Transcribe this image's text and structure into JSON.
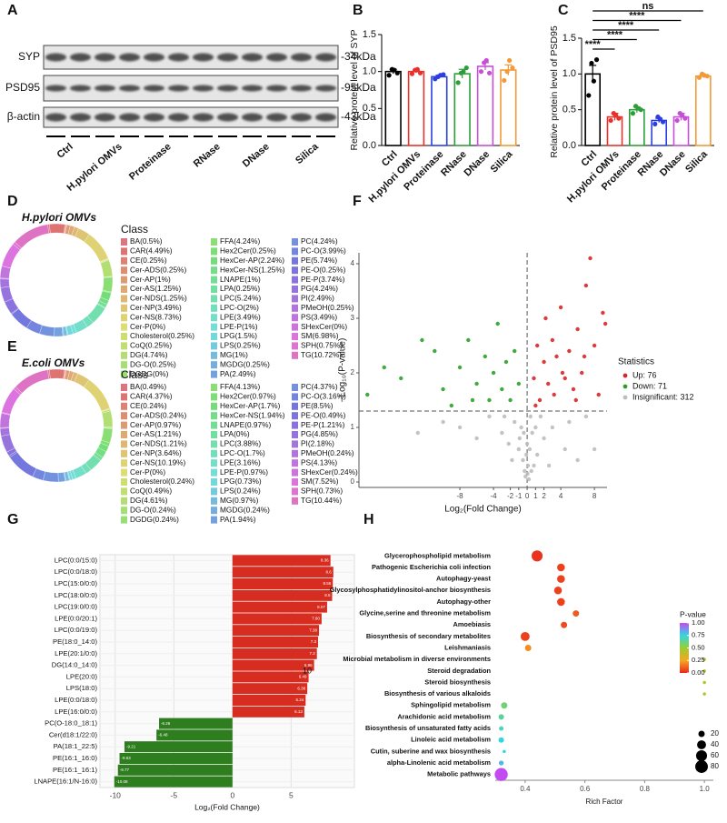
{
  "panels": [
    "A",
    "B",
    "C",
    "D",
    "E",
    "F",
    "G",
    "H"
  ],
  "blot": {
    "rows": [
      "SYP",
      "PSD95",
      "β-actin"
    ],
    "sizes": [
      "-34kDa",
      "-95kDa",
      "-43kDa"
    ],
    "lanes": [
      "Ctrl",
      "H.pylori OMVs",
      "Proteinase",
      "RNase",
      "DNase",
      "Silica"
    ]
  },
  "chart_data": [
    {
      "type": "bar",
      "ylabel": "Relative protein level of SYP",
      "categories": [
        "Ctrl",
        "H.pylori OMVs",
        "Proteinase",
        "RNase",
        "DNase",
        "Silica"
      ],
      "values": [
        1.0,
        1.0,
        0.93,
        0.97,
        1.07,
        1.02
      ],
      "errors": [
        0.03,
        0.02,
        0.02,
        0.06,
        0.05,
        0.07
      ],
      "points": [
        [
          0.95,
          1.02,
          1.03,
          0.98
        ],
        [
          0.97,
          1.03,
          1.02,
          0.98
        ],
        [
          0.9,
          0.95,
          0.93,
          0.96
        ],
        [
          0.85,
          1.0,
          0.98,
          1.05
        ],
        [
          1.0,
          1.15,
          1.12,
          0.98
        ],
        [
          0.88,
          1.15,
          1.0,
          1.05
        ]
      ],
      "colors": [
        "#000000",
        "#e8312b",
        "#2b3fe0",
        "#2e9e3a",
        "#c74fd8",
        "#f29a38"
      ],
      "ylim": [
        0,
        1.5
      ],
      "yticks": [
        {
          "value": 0,
          "label": "0.0"
        },
        {
          "value": 0.5,
          "label": "0.5"
        },
        {
          "value": 1,
          "label": "1.0"
        },
        {
          "value": 1.5,
          "label": "1.5"
        }
      ]
    },
    {
      "type": "bar",
      "ylabel": "Relative protein level of PSD95",
      "categories": [
        "Ctrl",
        "H.pylori OMVs",
        "Proteinase",
        "RNase",
        "DNase",
        "Silica"
      ],
      "values": [
        1.0,
        0.4,
        0.5,
        0.35,
        0.4,
        0.97
      ],
      "errors": [
        0.12,
        0.05,
        0.04,
        0.03,
        0.05,
        0.02
      ],
      "points": [
        [
          0.7,
          0.9,
          1.15,
          1.2
        ],
        [
          0.35,
          0.42,
          0.45,
          0.38
        ],
        [
          0.45,
          0.52,
          0.55,
          0.5
        ],
        [
          0.3,
          0.37,
          0.4,
          0.33
        ],
        [
          0.35,
          0.42,
          0.45,
          0.38
        ],
        [
          0.95,
          0.98,
          1.0,
          0.97
        ]
      ],
      "colors": [
        "#000000",
        "#e8312b",
        "#2e9e3a",
        "#2b3fe0",
        "#c74fd8",
        "#f29a38"
      ],
      "ylim": [
        0,
        1.5
      ],
      "yticks": [
        {
          "value": 0,
          "label": "0.0"
        },
        {
          "value": 0.5,
          "label": "0.5"
        },
        {
          "value": 1,
          "label": "1.0"
        },
        {
          "value": 1.5,
          "label": "1.5"
        }
      ],
      "comparisons": [
        {
          "label": "****",
          "groups": [
            "Ctrl",
            "H.pylori OMVs"
          ]
        },
        {
          "label": "****",
          "groups": [
            "Ctrl",
            "Proteinase"
          ]
        },
        {
          "label": "****",
          "groups": [
            "Ctrl",
            "RNase"
          ]
        },
        {
          "label": "****",
          "groups": [
            "Ctrl",
            "DNase"
          ]
        },
        {
          "label": "ns",
          "groups": [
            "Ctrl",
            "Silica"
          ]
        }
      ]
    },
    {
      "type": "donut",
      "subtitle": "H.pylori OMVs",
      "legend_title": "Class",
      "categories": [
        "BA(0.5%)",
        "CAR(4.49%)",
        "CE(0.25%)",
        "Cer-ADS(0.25%)",
        "Cer-AP(1%)",
        "Cer-AS(1.25%)",
        "Cer-NDS(1.25%)",
        "Cer-NP(3.49%)",
        "Cer-NS(8.73%)",
        "Cer-P(0%)",
        "Cholesterol(0.25%)",
        "CoQ(0.25%)",
        "DG(4.74%)",
        "DG-O(0.25%)",
        "DGDG(0%)",
        "FFA(4.24%)",
        "Hex2Cer(0.25%)",
        "HexCer-AP(2.24%)",
        "HexCer-NS(1.25%)",
        "LNAPE(1%)",
        "LPA(0.25%)",
        "LPC(5.24%)",
        "LPC-O(2%)",
        "LPE(3.49%)",
        "LPE-P(1%)",
        "LPG(1.5%)",
        "LPS(0.25%)",
        "MG(1%)",
        "MGDG(0.25%)",
        "PA(2.49%)",
        "PC(4.24%)",
        "PC-O(3.99%)",
        "PE(5.74%)",
        "PE-O(0.25%)",
        "PE-P(3.74%)",
        "PG(4.24%)",
        "PI(2.49%)",
        "PMeOH(0.25%)",
        "PS(3.49%)",
        "SHexCer(0%)",
        "SM(6.98%)",
        "SPH(0.75%)",
        "TG(10.72%)"
      ],
      "values": [
        0.5,
        4.49,
        0.25,
        0.25,
        1,
        1.25,
        1.25,
        3.49,
        8.73,
        0,
        0.25,
        0.25,
        4.74,
        0.25,
        0,
        4.24,
        0.25,
        2.24,
        1.25,
        1,
        0.25,
        5.24,
        2,
        3.49,
        1,
        1.5,
        0.25,
        1,
        0.25,
        2.49,
        4.24,
        3.99,
        5.74,
        0.25,
        3.74,
        4.24,
        2.49,
        0.25,
        3.49,
        0,
        6.98,
        0.75,
        10.72
      ]
    },
    {
      "type": "donut",
      "subtitle": "E.coli OMVs",
      "legend_title": "Class",
      "categories": [
        "BA(0.49%)",
        "CAR(4.37%)",
        "CE(0.24%)",
        "Cer-ADS(0.24%)",
        "Cer-AP(0.97%)",
        "Cer-AS(1.21%)",
        "Cer-NDS(1.21%)",
        "Cer-NP(3.64%)",
        "Cer-NS(10.19%)",
        "Cer-P(0%)",
        "Cholesterol(0.24%)",
        "CoQ(0.49%)",
        "DG(4.61%)",
        "DG-O(0.24%)",
        "DGDG(0.24%)",
        "FFA(4.13%)",
        "Hex2Cer(0.97%)",
        "HexCer-AP(1.7%)",
        "HexCer-NS(1.94%)",
        "LNAPE(0.97%)",
        "LPA(0%)",
        "LPC(3.88%)",
        "LPC-O(1.7%)",
        "LPE(3.16%)",
        "LPE-P(0.97%)",
        "LPG(0.73%)",
        "LPS(0.24%)",
        "MG(0.97%)",
        "MGDG(0.24%)",
        "PA(1.94%)",
        "PC(4.37%)",
        "PC-O(3.16%)",
        "PE(8.5%)",
        "PE-O(0.49%)",
        "PE-P(1.21%)",
        "PG(4.85%)",
        "PI(2.18%)",
        "PMeOH(0.24%)",
        "PS(4.13%)",
        "SHexCer(0.24%)",
        "SM(7.52%)",
        "SPH(0.73%)",
        "TG(10.44%)"
      ],
      "values": [
        0.49,
        4.37,
        0.24,
        0.24,
        0.97,
        1.21,
        1.21,
        3.64,
        10.19,
        0,
        0.24,
        0.49,
        4.61,
        0.24,
        0.24,
        4.13,
        0.97,
        1.7,
        1.94,
        0.97,
        0,
        3.88,
        1.7,
        3.16,
        0.97,
        0.73,
        0.24,
        0.97,
        0.24,
        1.94,
        4.37,
        3.16,
        8.5,
        0.49,
        1.21,
        4.85,
        2.18,
        0.24,
        4.13,
        0.24,
        7.52,
        0.73,
        10.44
      ]
    },
    {
      "type": "scatter",
      "xlabel": "Log₂(Fold Change)",
      "ylabel": "−Log₁₀(P-value)",
      "legend_title": "Statistics",
      "xlim": [
        -20,
        9.5
      ],
      "ylim": [
        -0.1,
        4.2
      ],
      "xticks": [
        -8,
        -4,
        -2,
        -1,
        0,
        1,
        2,
        4,
        8
      ],
      "yticks": [
        0,
        1,
        2,
        3,
        4
      ],
      "hlines": [
        1.3
      ],
      "vlines": [
        0
      ],
      "series": [
        {
          "name": "Up: 76",
          "color": "#d62728",
          "x": [
            0.8,
            1.2,
            1.5,
            2.0,
            2.5,
            3,
            3.5,
            4,
            4.5,
            5,
            5.5,
            6,
            6.5,
            7,
            7.5,
            8,
            8.5,
            9,
            1,
            2.2,
            3.2,
            4.2,
            5.8,
            6.8,
            9.3
          ],
          "values": [
            1.9,
            2.5,
            1.5,
            2.2,
            1.8,
            2.6,
            2.3,
            3.2,
            1.9,
            2.4,
            1.7,
            2.8,
            2.0,
            3.6,
            4.1,
            2.5,
            1.6,
            3.1,
            1.4,
            3.0,
            1.6,
            2.0,
            1.5,
            2.3,
            2.9
          ]
        },
        {
          "name": "Down: 71",
          "color": "#2ca02c",
          "x": [
            -19,
            -17,
            -15,
            -12.5,
            -11,
            -9,
            -8,
            -7,
            -6,
            -5,
            -4.5,
            -4,
            -3.5,
            -3,
            -2.5,
            -2,
            -1.5,
            -1,
            -6.5,
            -10
          ],
          "values": [
            1.6,
            2.1,
            1.9,
            2.6,
            2.4,
            1.4,
            2.1,
            2.6,
            1.8,
            2.3,
            1.5,
            2.0,
            2.9,
            1.7,
            2.2,
            1.5,
            2.4,
            1.8,
            1.5,
            1.7
          ]
        },
        {
          "name": "Insignificant: 312",
          "color": "#bdbdbd",
          "x": [
            -0.2,
            0.1,
            0.3,
            -0.5,
            0.6,
            -0.9,
            1.2,
            -1.5,
            2,
            -2.2,
            0.4,
            -0.3,
            0.2,
            -0.1,
            0.05,
            3,
            -3,
            4.5,
            -4.5,
            6,
            -6,
            0.8,
            -0.7,
            1.6,
            -1.8,
            2.6,
            -2.7,
            5,
            8,
            -8,
            0,
            -0.4,
            0.5,
            1,
            -1,
            -10,
            -13,
            7
          ],
          "values": [
            0.1,
            0.3,
            0.6,
            0.4,
            0.9,
            0.8,
            0.5,
            1.1,
            0.8,
            0.7,
            1.2,
            0.2,
            0.05,
            0.5,
            0.15,
            1.0,
            0.9,
            0.6,
            1.2,
            0.4,
            0.8,
            0.3,
            1.0,
            1.2,
            0.4,
            0.3,
            1.2,
            1.1,
            0.6,
            1.0,
            0.7,
            0.9,
            0.2,
            1.0,
            0.6,
            1.1,
            0.9,
            1.2
          ]
        }
      ]
    },
    {
      "type": "barh",
      "xlabel": "Log₂(Fold Change)",
      "annotation": "10",
      "color_positive": "#d62d20",
      "color_negative": "#2e7d1e",
      "grid": true,
      "categories": [
        "LPC(0:0/15:0)",
        "LPC(0:0/18:0)",
        "LPC(15:0/0:0)",
        "LPC(18:0/0:0)",
        "LPC(19:0/0:0)",
        "LPE(0:0/20:1)",
        "LPC(0:0/19:0)",
        "PE(18:0_14:0)",
        "LPE(20:1/0:0)",
        "DG(14:0_14:0)",
        "LPE(20:0)",
        "LPS(18:0)",
        "LPE(0:0/18:0)",
        "LPE(16:0/0:0)",
        "PC(O-18:0_18:1)",
        "Cer(d18:1/22:0)",
        "PA(18:1_22:5)",
        "PE(16:1_16:0)",
        "PE(16:1_16:1)",
        "LNAPE(16:1/N-16:0)"
      ],
      "values": [
        8.36,
        8.6,
        8.56,
        8.5,
        8.07,
        7.6,
        7.38,
        7.3,
        7.2,
        6.96,
        6.49,
        6.38,
        6.24,
        6.13,
        -6.26,
        -6.48,
        -9.21,
        -9.63,
        -9.77,
        -10.08
      ],
      "value_labels": [
        "8.36",
        "8.6",
        "8.56",
        "8.5",
        "8.07",
        "7.60",
        "7.38",
        "7.3",
        "7.2",
        "6.96",
        "6.49",
        "6.38",
        "6.24",
        "6.13",
        "-6.26",
        "-6.48",
        "-9.21",
        "-9.63",
        "-9.77",
        "-10.08"
      ],
      "xlim": [
        -11.3,
        10.4
      ],
      "xticks": [
        -10,
        -5,
        0,
        5
      ]
    },
    {
      "type": "bubble",
      "xlabel": "Rich Factor",
      "colorbar_title": "P-value",
      "categories": [
        "Glycerophospholipid metabolism",
        "Pathogenic Escherichia coli infection",
        "Autophagy-yeast",
        "Glycosylphosphatidylinositol-anchor biosynthesis",
        "Autophagy-other",
        "Glycine,serine and threonine metabolism",
        "Amoebiasis",
        "Biosynthesis of secondary metabolites",
        "Leishmaniasis",
        "Microbial metabolism in diverse environments",
        "Steroid degradation",
        "Steroid biosynthesis",
        "Biosynthesis of various alkaloids",
        "Sphingolipid metabolism",
        "Arachidonic acid metabolism",
        "Biosynthesis of unsaturated fatty acids",
        "Linoleic acid metabolism",
        "Cutin, suberine and wax biosynthesis",
        "alpha-Linolenic acid metabolism",
        "Metabolic pathways"
      ],
      "values": [
        0.44,
        0.52,
        0.52,
        0.51,
        0.52,
        0.57,
        0.53,
        0.4,
        0.41,
        1.0,
        1.0,
        1.0,
        1.0,
        0.33,
        0.32,
        0.32,
        0.32,
        0.33,
        0.32,
        0.32
      ],
      "sizes": [
        60,
        30,
        30,
        30,
        30,
        20,
        20,
        40,
        20,
        5,
        5,
        5,
        5,
        20,
        15,
        10,
        15,
        5,
        12,
        85
      ],
      "pvalues": [
        0.02,
        0.05,
        0.05,
        0.05,
        0.05,
        0.1,
        0.07,
        0.05,
        0.2,
        0.45,
        0.45,
        0.45,
        0.45,
        0.6,
        0.65,
        0.7,
        0.75,
        0.75,
        0.8,
        1.0
      ],
      "xlim": [
        0.3,
        1.03
      ],
      "xticks": [
        0.4,
        0.6,
        0.8,
        {
          "value": 1,
          "label": "1.0"
        }
      ],
      "colorscale": [
        "#e8291c",
        "#f6a623",
        "#9acd32",
        "#33d6e0",
        "#c34bf2"
      ],
      "clim": [
        0,
        1
      ],
      "cticks": [
        {
          "value": 0,
          "label": "0.00"
        },
        {
          "value": 0.25,
          "label": "0.25"
        },
        {
          "value": 0.5,
          "label": "0.50"
        },
        {
          "value": 0.75,
          "label": "0.75"
        },
        {
          "value": 1,
          "label": "1.00"
        }
      ],
      "size_legend": [
        20,
        40,
        60,
        80
      ]
    }
  ]
}
